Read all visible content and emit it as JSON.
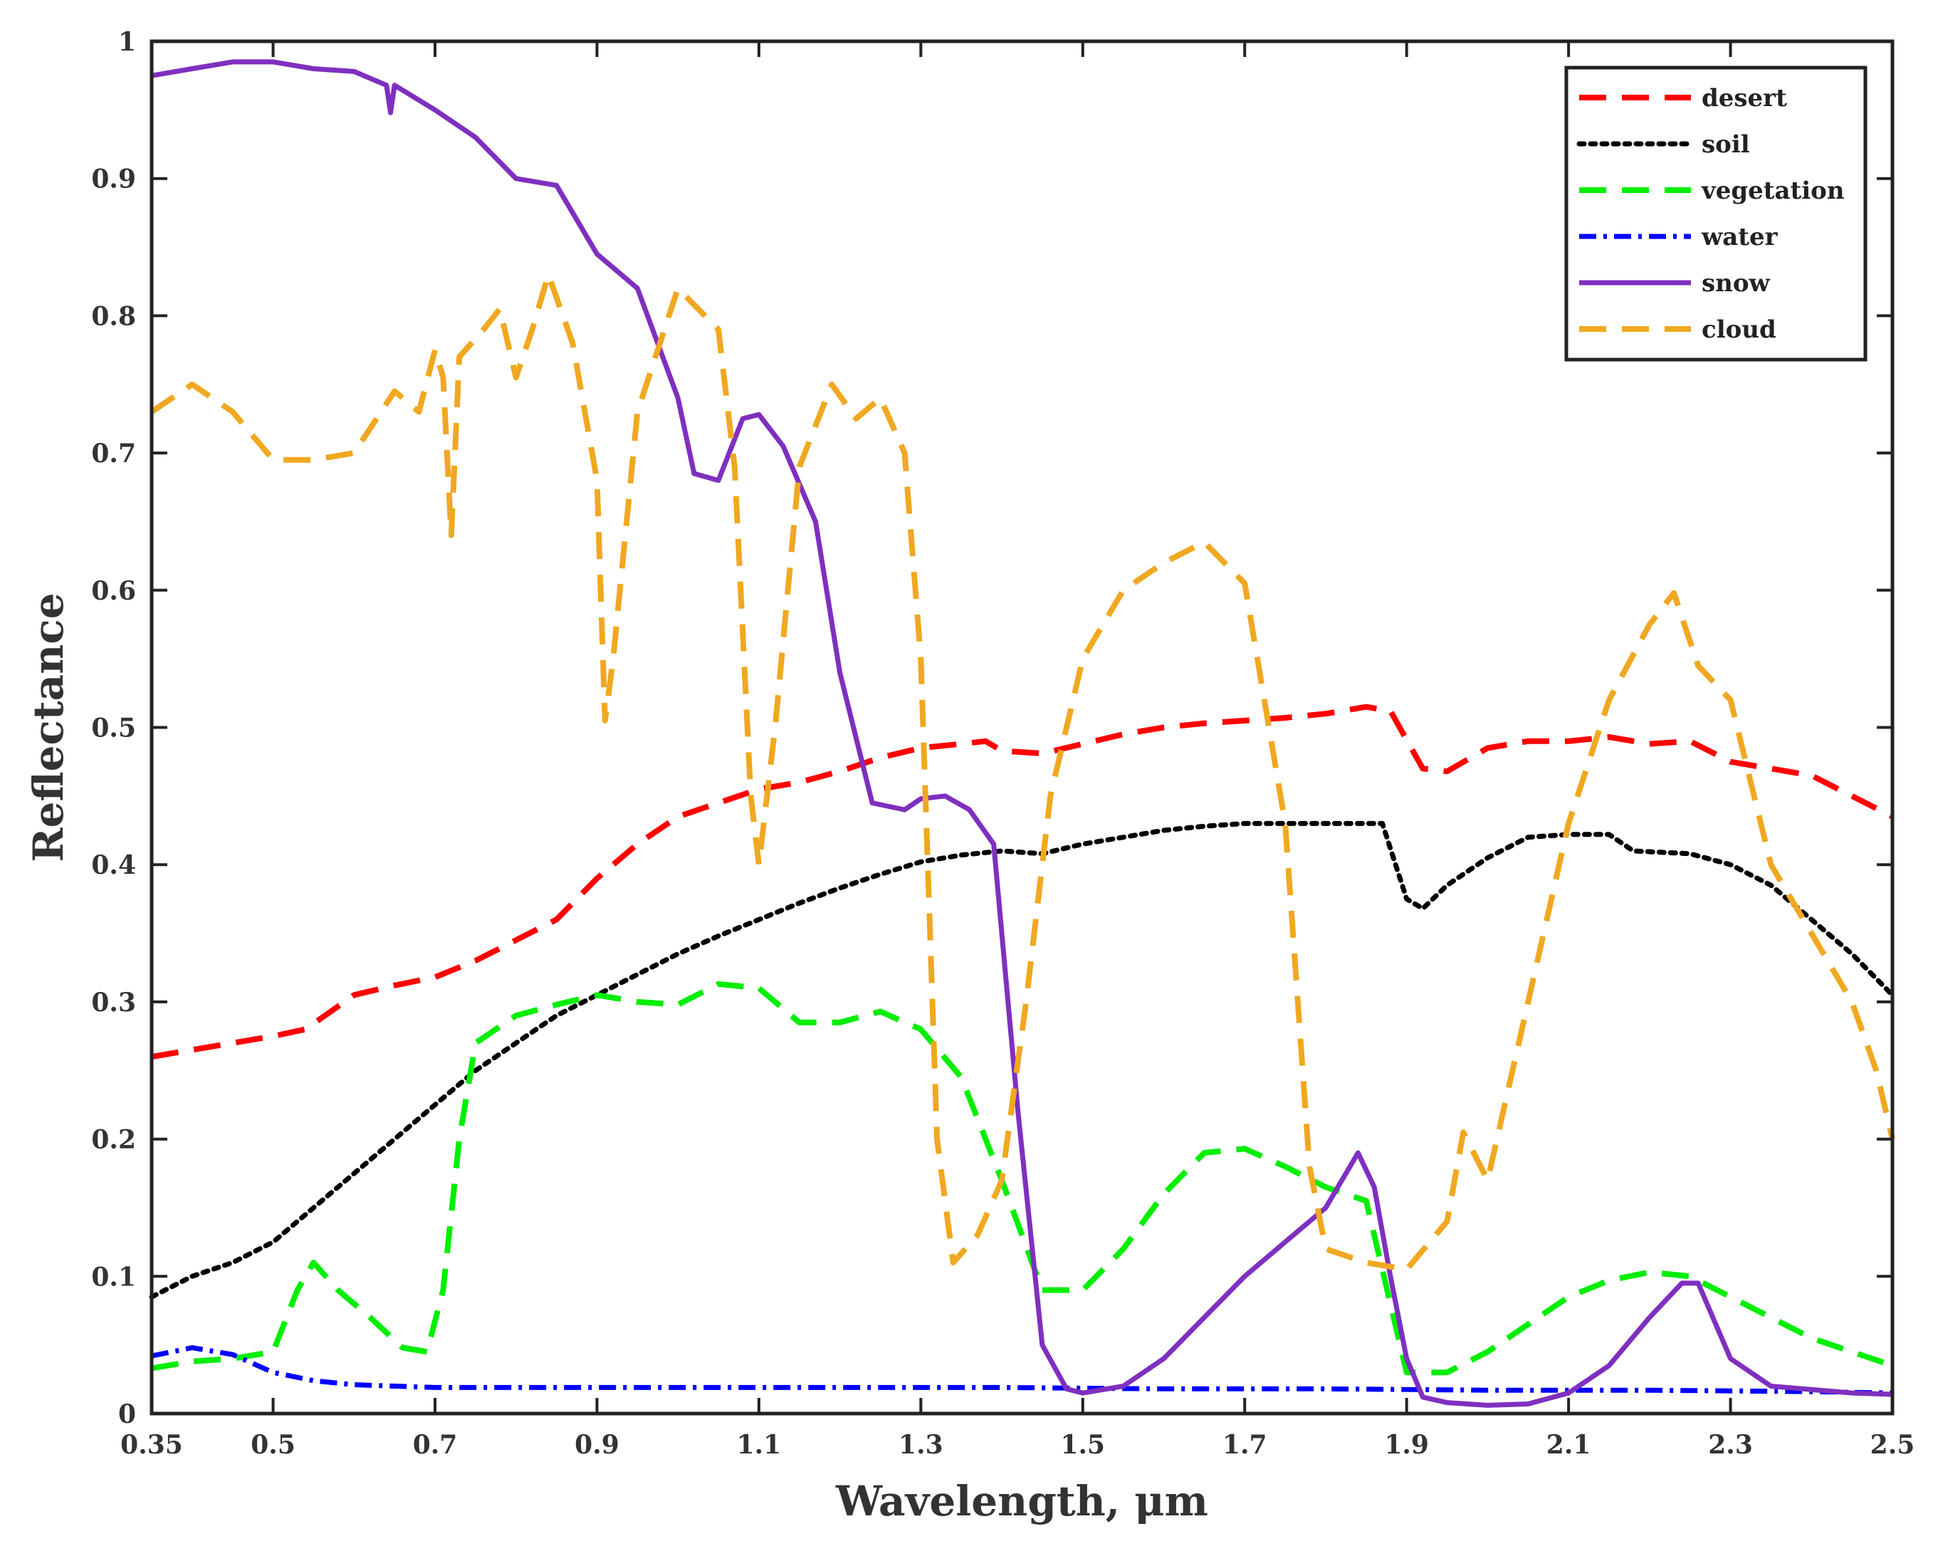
{
  "chart_data": {
    "type": "line",
    "title": "",
    "xlabel": "Wavelength, μm",
    "ylabel": "Reflectance",
    "xlim": [
      0.35,
      2.5
    ],
    "ylim": [
      0,
      1
    ],
    "x_ticks": [
      0.35,
      0.5,
      0.7,
      0.9,
      1.1,
      1.3,
      1.5,
      1.7,
      1.9,
      2.1,
      2.3,
      2.5
    ],
    "x_tick_labels": [
      "0.35",
      "0.5",
      "0.7",
      "0.9",
      "1.1",
      "1.3",
      "1.5",
      "1.7",
      "1.9",
      "2.1",
      "2.3",
      "2.5"
    ],
    "y_ticks": [
      0,
      0.1,
      0.2,
      0.3,
      0.4,
      0.5,
      0.6,
      0.7,
      0.8,
      0.9,
      1
    ],
    "y_tick_labels": [
      "0",
      "0.1",
      "0.2",
      "0.3",
      "0.4",
      "0.5",
      "0.6",
      "0.7",
      "0.8",
      "0.9",
      "1"
    ],
    "grid": false,
    "legend_position": "top-right",
    "series": [
      {
        "name": "desert",
        "color": "#ff0000",
        "style": "dashed",
        "points": [
          [
            0.35,
            0.26
          ],
          [
            0.4,
            0.265
          ],
          [
            0.45,
            0.27
          ],
          [
            0.5,
            0.275
          ],
          [
            0.54,
            0.28
          ],
          [
            0.6,
            0.305
          ],
          [
            0.65,
            0.312
          ],
          [
            0.7,
            0.318
          ],
          [
            0.75,
            0.33
          ],
          [
            0.8,
            0.345
          ],
          [
            0.85,
            0.36
          ],
          [
            0.9,
            0.39
          ],
          [
            0.95,
            0.415
          ],
          [
            1.0,
            0.435
          ],
          [
            1.05,
            0.445
          ],
          [
            1.1,
            0.455
          ],
          [
            1.15,
            0.46
          ],
          [
            1.2,
            0.468
          ],
          [
            1.25,
            0.478
          ],
          [
            1.3,
            0.485
          ],
          [
            1.35,
            0.488
          ],
          [
            1.38,
            0.49
          ],
          [
            1.4,
            0.483
          ],
          [
            1.45,
            0.481
          ],
          [
            1.5,
            0.488
          ],
          [
            1.55,
            0.495
          ],
          [
            1.6,
            0.5
          ],
          [
            1.65,
            0.503
          ],
          [
            1.7,
            0.505
          ],
          [
            1.75,
            0.507
          ],
          [
            1.8,
            0.51
          ],
          [
            1.85,
            0.515
          ],
          [
            1.88,
            0.512
          ],
          [
            1.92,
            0.47
          ],
          [
            1.95,
            0.468
          ],
          [
            2.0,
            0.485
          ],
          [
            2.05,
            0.49
          ],
          [
            2.1,
            0.49
          ],
          [
            2.15,
            0.493
          ],
          [
            2.2,
            0.488
          ],
          [
            2.25,
            0.49
          ],
          [
            2.3,
            0.475
          ],
          [
            2.35,
            0.47
          ],
          [
            2.4,
            0.465
          ],
          [
            2.45,
            0.45
          ],
          [
            2.5,
            0.435
          ]
        ]
      },
      {
        "name": "soil",
        "color": "#000000",
        "style": "dotted",
        "points": [
          [
            0.35,
            0.085
          ],
          [
            0.4,
            0.1
          ],
          [
            0.45,
            0.11
          ],
          [
            0.5,
            0.125
          ],
          [
            0.55,
            0.15
          ],
          [
            0.6,
            0.175
          ],
          [
            0.65,
            0.2
          ],
          [
            0.7,
            0.225
          ],
          [
            0.75,
            0.25
          ],
          [
            0.8,
            0.27
          ],
          [
            0.85,
            0.29
          ],
          [
            0.9,
            0.305
          ],
          [
            0.95,
            0.32
          ],
          [
            1.0,
            0.335
          ],
          [
            1.05,
            0.348
          ],
          [
            1.1,
            0.36
          ],
          [
            1.15,
            0.372
          ],
          [
            1.2,
            0.383
          ],
          [
            1.25,
            0.393
          ],
          [
            1.3,
            0.402
          ],
          [
            1.35,
            0.407
          ],
          [
            1.4,
            0.41
          ],
          [
            1.45,
            0.408
          ],
          [
            1.5,
            0.415
          ],
          [
            1.55,
            0.42
          ],
          [
            1.6,
            0.425
          ],
          [
            1.65,
            0.428
          ],
          [
            1.7,
            0.43
          ],
          [
            1.75,
            0.43
          ],
          [
            1.8,
            0.43
          ],
          [
            1.87,
            0.43
          ],
          [
            1.9,
            0.375
          ],
          [
            1.92,
            0.368
          ],
          [
            1.95,
            0.385
          ],
          [
            2.0,
            0.405
          ],
          [
            2.05,
            0.42
          ],
          [
            2.1,
            0.422
          ],
          [
            2.15,
            0.422
          ],
          [
            2.18,
            0.41
          ],
          [
            2.25,
            0.408
          ],
          [
            2.3,
            0.4
          ],
          [
            2.35,
            0.385
          ],
          [
            2.4,
            0.36
          ],
          [
            2.45,
            0.335
          ],
          [
            2.5,
            0.305
          ]
        ]
      },
      {
        "name": "vegetation",
        "color": "#00ee00",
        "style": "dashed",
        "points": [
          [
            0.35,
            0.033
          ],
          [
            0.4,
            0.038
          ],
          [
            0.45,
            0.04
          ],
          [
            0.5,
            0.045
          ],
          [
            0.53,
            0.09
          ],
          [
            0.55,
            0.11
          ],
          [
            0.58,
            0.09
          ],
          [
            0.62,
            0.07
          ],
          [
            0.66,
            0.048
          ],
          [
            0.69,
            0.045
          ],
          [
            0.71,
            0.09
          ],
          [
            0.73,
            0.2
          ],
          [
            0.75,
            0.27
          ],
          [
            0.8,
            0.29
          ],
          [
            0.85,
            0.298
          ],
          [
            0.9,
            0.305
          ],
          [
            0.95,
            0.3
          ],
          [
            1.0,
            0.298
          ],
          [
            1.05,
            0.313
          ],
          [
            1.1,
            0.31
          ],
          [
            1.15,
            0.285
          ],
          [
            1.2,
            0.285
          ],
          [
            1.25,
            0.293
          ],
          [
            1.3,
            0.28
          ],
          [
            1.35,
            0.245
          ],
          [
            1.4,
            0.17
          ],
          [
            1.45,
            0.09
          ],
          [
            1.5,
            0.09
          ],
          [
            1.55,
            0.12
          ],
          [
            1.6,
            0.16
          ],
          [
            1.65,
            0.19
          ],
          [
            1.7,
            0.193
          ],
          [
            1.75,
            0.18
          ],
          [
            1.8,
            0.165
          ],
          [
            1.85,
            0.155
          ],
          [
            1.9,
            0.03
          ],
          [
            1.95,
            0.03
          ],
          [
            2.0,
            0.045
          ],
          [
            2.05,
            0.065
          ],
          [
            2.1,
            0.085
          ],
          [
            2.15,
            0.097
          ],
          [
            2.2,
            0.103
          ],
          [
            2.25,
            0.1
          ],
          [
            2.3,
            0.085
          ],
          [
            2.35,
            0.07
          ],
          [
            2.4,
            0.055
          ],
          [
            2.45,
            0.045
          ],
          [
            2.5,
            0.035
          ]
        ]
      },
      {
        "name": "water",
        "color": "#0000ff",
        "style": "dashdot",
        "points": [
          [
            0.35,
            0.042
          ],
          [
            0.4,
            0.048
          ],
          [
            0.45,
            0.043
          ],
          [
            0.5,
            0.03
          ],
          [
            0.55,
            0.024
          ],
          [
            0.6,
            0.021
          ],
          [
            0.7,
            0.019
          ],
          [
            0.8,
            0.019
          ],
          [
            0.9,
            0.019
          ],
          [
            1.0,
            0.019
          ],
          [
            1.2,
            0.019
          ],
          [
            1.4,
            0.019
          ],
          [
            1.6,
            0.018
          ],
          [
            1.8,
            0.018
          ],
          [
            2.0,
            0.017
          ],
          [
            2.2,
            0.017
          ],
          [
            2.4,
            0.016
          ],
          [
            2.5,
            0.015
          ]
        ]
      },
      {
        "name": "snow",
        "color": "#7f2fbf",
        "style": "solid",
        "points": [
          [
            0.35,
            0.975
          ],
          [
            0.4,
            0.98
          ],
          [
            0.45,
            0.985
          ],
          [
            0.5,
            0.985
          ],
          [
            0.55,
            0.98
          ],
          [
            0.6,
            0.978
          ],
          [
            0.64,
            0.968
          ],
          [
            0.645,
            0.948
          ],
          [
            0.65,
            0.968
          ],
          [
            0.7,
            0.95
          ],
          [
            0.75,
            0.93
          ],
          [
            0.8,
            0.9
          ],
          [
            0.85,
            0.895
          ],
          [
            0.9,
            0.845
          ],
          [
            0.95,
            0.82
          ],
          [
            1.0,
            0.74
          ],
          [
            1.02,
            0.685
          ],
          [
            1.05,
            0.68
          ],
          [
            1.08,
            0.725
          ],
          [
            1.1,
            0.728
          ],
          [
            1.13,
            0.705
          ],
          [
            1.17,
            0.65
          ],
          [
            1.2,
            0.54
          ],
          [
            1.24,
            0.445
          ],
          [
            1.28,
            0.44
          ],
          [
            1.3,
            0.448
          ],
          [
            1.33,
            0.45
          ],
          [
            1.36,
            0.44
          ],
          [
            1.39,
            0.415
          ],
          [
            1.42,
            0.22
          ],
          [
            1.45,
            0.05
          ],
          [
            1.48,
            0.018
          ],
          [
            1.5,
            0.015
          ],
          [
            1.55,
            0.02
          ],
          [
            1.6,
            0.04
          ],
          [
            1.65,
            0.07
          ],
          [
            1.7,
            0.1
          ],
          [
            1.75,
            0.125
          ],
          [
            1.8,
            0.15
          ],
          [
            1.83,
            0.18
          ],
          [
            1.84,
            0.19
          ],
          [
            1.86,
            0.165
          ],
          [
            1.88,
            0.1
          ],
          [
            1.9,
            0.04
          ],
          [
            1.92,
            0.012
          ],
          [
            1.95,
            0.008
          ],
          [
            2.0,
            0.006
          ],
          [
            2.05,
            0.007
          ],
          [
            2.1,
            0.015
          ],
          [
            2.15,
            0.035
          ],
          [
            2.2,
            0.07
          ],
          [
            2.24,
            0.095
          ],
          [
            2.26,
            0.095
          ],
          [
            2.3,
            0.04
          ],
          [
            2.35,
            0.02
          ],
          [
            2.45,
            0.015
          ],
          [
            2.5,
            0.014
          ]
        ]
      },
      {
        "name": "cloud",
        "color": "#f0a820",
        "style": "dashed",
        "points": [
          [
            0.35,
            0.73
          ],
          [
            0.4,
            0.75
          ],
          [
            0.45,
            0.73
          ],
          [
            0.5,
            0.695
          ],
          [
            0.55,
            0.695
          ],
          [
            0.6,
            0.7
          ],
          [
            0.65,
            0.745
          ],
          [
            0.68,
            0.73
          ],
          [
            0.7,
            0.775
          ],
          [
            0.71,
            0.755
          ],
          [
            0.72,
            0.64
          ],
          [
            0.73,
            0.77
          ],
          [
            0.76,
            0.79
          ],
          [
            0.78,
            0.805
          ],
          [
            0.8,
            0.755
          ],
          [
            0.82,
            0.79
          ],
          [
            0.84,
            0.83
          ],
          [
            0.87,
            0.78
          ],
          [
            0.9,
            0.68
          ],
          [
            0.91,
            0.505
          ],
          [
            0.92,
            0.55
          ],
          [
            0.95,
            0.73
          ],
          [
            1.0,
            0.82
          ],
          [
            1.05,
            0.79
          ],
          [
            1.07,
            0.69
          ],
          [
            1.09,
            0.45
          ],
          [
            1.1,
            0.4
          ],
          [
            1.12,
            0.5
          ],
          [
            1.15,
            0.69
          ],
          [
            1.19,
            0.75
          ],
          [
            1.22,
            0.725
          ],
          [
            1.25,
            0.74
          ],
          [
            1.28,
            0.7
          ],
          [
            1.3,
            0.55
          ],
          [
            1.32,
            0.2
          ],
          [
            1.34,
            0.11
          ],
          [
            1.37,
            0.13
          ],
          [
            1.4,
            0.17
          ],
          [
            1.43,
            0.3
          ],
          [
            1.46,
            0.45
          ],
          [
            1.5,
            0.55
          ],
          [
            1.55,
            0.6
          ],
          [
            1.6,
            0.62
          ],
          [
            1.65,
            0.635
          ],
          [
            1.7,
            0.605
          ],
          [
            1.75,
            0.43
          ],
          [
            1.78,
            0.18
          ],
          [
            1.8,
            0.12
          ],
          [
            1.85,
            0.11
          ],
          [
            1.9,
            0.105
          ],
          [
            1.95,
            0.14
          ],
          [
            1.97,
            0.205
          ],
          [
            2.0,
            0.17
          ],
          [
            2.05,
            0.3
          ],
          [
            2.1,
            0.43
          ],
          [
            2.15,
            0.52
          ],
          [
            2.2,
            0.575
          ],
          [
            2.23,
            0.598
          ],
          [
            2.26,
            0.545
          ],
          [
            2.3,
            0.52
          ],
          [
            2.35,
            0.4
          ],
          [
            2.4,
            0.35
          ],
          [
            2.45,
            0.3
          ],
          [
            2.48,
            0.25
          ],
          [
            2.5,
            0.2
          ]
        ]
      }
    ]
  }
}
